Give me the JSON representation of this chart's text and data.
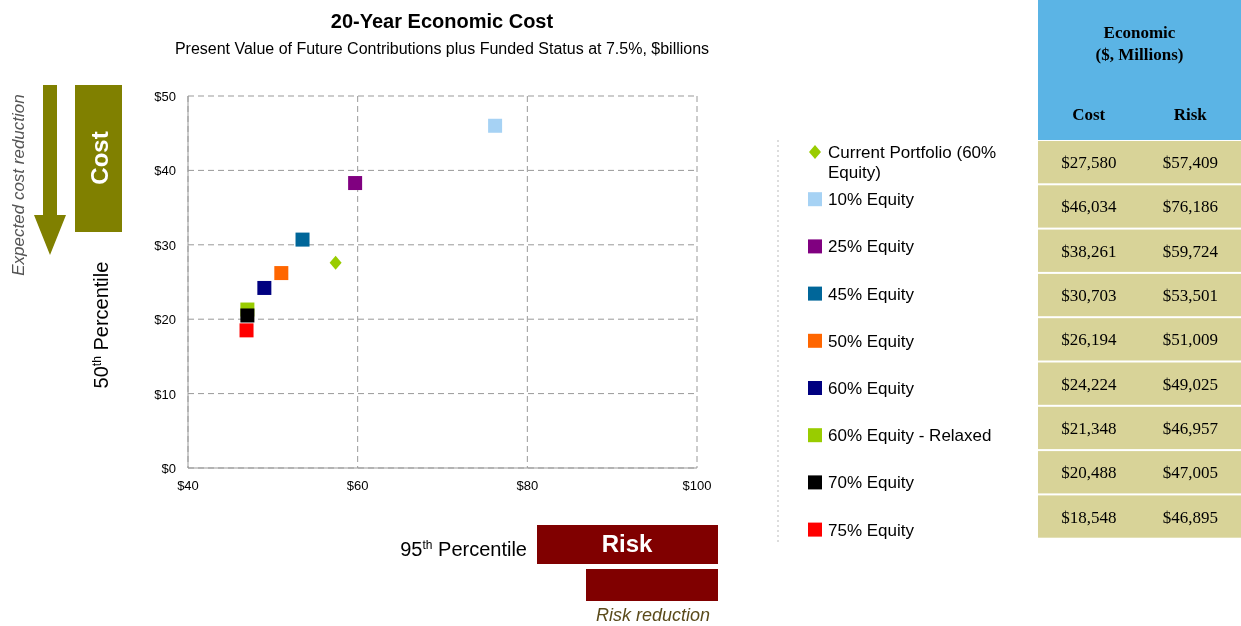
{
  "chart_data": [
    {
      "type": "scatter",
      "title": "20-Year Economic Cost",
      "subtitle": "Present Value of Future Contributions plus Funded Status at 7.5%, $billions",
      "xlabel": "95$^{th}$ Percentile",
      "ylabel": "50$^{th}$ Percentile",
      "xlim": [
        40,
        100
      ],
      "xticks": [
        {
          "value": 40,
          "label": "$40"
        },
        {
          "value": 60,
          "label": "$60"
        },
        {
          "value": 80,
          "label": "$80"
        },
        {
          "value": 100,
          "label": "$100"
        }
      ],
      "ylim": [
        0,
        50
      ],
      "yticks": [
        {
          "value": 0,
          "label": "$0"
        },
        {
          "value": 10,
          "label": "$10"
        },
        {
          "value": 20,
          "label": "$20"
        },
        {
          "value": 30,
          "label": "$30"
        },
        {
          "value": 40,
          "label": "$40"
        },
        {
          "value": 50,
          "label": "$50"
        }
      ],
      "grid": true,
      "legend": "right",
      "series": [
        {
          "name": "Current Portfolio (60% Equity)",
          "color": "#99cc00",
          "marker": "diamond",
          "x": [
            57.4
          ],
          "values": [
            27.6
          ]
        },
        {
          "name": "10% Equity",
          "color": "#a6d2f4",
          "marker": "square",
          "x": [
            76.2
          ],
          "values": [
            46.0
          ]
        },
        {
          "name": "25% Equity",
          "color": "#800080",
          "marker": "square",
          "x": [
            59.7
          ],
          "values": [
            38.3
          ]
        },
        {
          "name": "45% Equity",
          "color": "#006699",
          "marker": "square",
          "x": [
            53.5
          ],
          "values": [
            30.7
          ]
        },
        {
          "name": "50% Equity",
          "color": "#ff6600",
          "marker": "square",
          "x": [
            51.0
          ],
          "values": [
            26.2
          ]
        },
        {
          "name": "60% Equity",
          "color": "#000080",
          "marker": "square",
          "x": [
            49.0
          ],
          "values": [
            24.2
          ]
        },
        {
          "name": "60% Equity - Relaxed",
          "color": "#99cc00",
          "marker": "square",
          "x": [
            47.0
          ],
          "values": [
            21.3
          ]
        },
        {
          "name": "70% Equity",
          "color": "#000000",
          "marker": "square",
          "x": [
            47.0
          ],
          "values": [
            20.5
          ]
        },
        {
          "name": "75% Equity",
          "color": "#ff0000",
          "marker": "square",
          "x": [
            46.9
          ],
          "values": [
            18.5
          ]
        }
      ],
      "annotations": [
        "Cost",
        "Expected cost  reduction",
        "Risk",
        "Risk reduction"
      ]
    },
    {
      "type": "other",
      "title": "Economic ($, Millions)",
      "annotations": [
        "Cost",
        "Risk",
        "$27,580",
        "$57,409",
        "$46,034",
        "$76,186",
        "$38,261",
        "$59,724",
        "$30,703",
        "$53,501",
        "$26,194",
        "$51,009",
        "$24,224",
        "$49,025",
        "$21,348",
        "$46,957",
        "$20,488",
        "$47,005",
        "$18,548",
        "$46,895"
      ]
    }
  ]
}
